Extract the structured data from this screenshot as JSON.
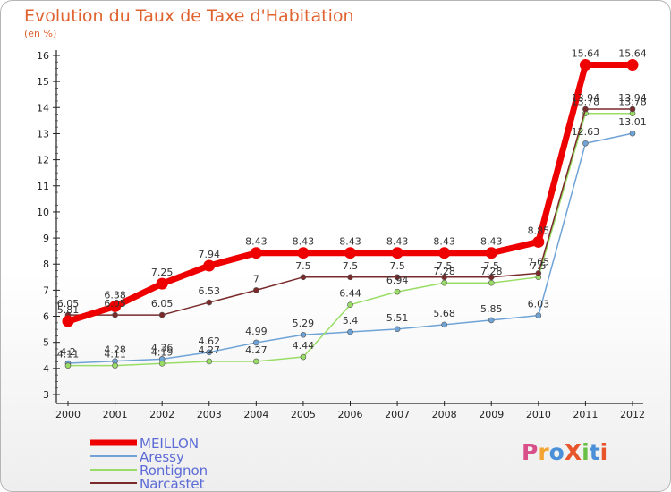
{
  "chart_data": {
    "type": "line",
    "title": "Evolution du Taux de Taxe d'Habitation",
    "subtitle": "(en %)",
    "x": [
      "2000",
      "2001",
      "2002",
      "2003",
      "2004",
      "2005",
      "2006",
      "2007",
      "2008",
      "2009",
      "2010",
      "2011",
      "2012"
    ],
    "ylim": [
      3,
      16
    ],
    "yticks": [
      3,
      4,
      5,
      6,
      7,
      8,
      9,
      10,
      11,
      12,
      13,
      14,
      15,
      16
    ],
    "grid": false,
    "legend_position": "bottom-left",
    "series": [
      {
        "name": "MEILLON",
        "color": "#ee0000",
        "width": 7,
        "values": [
          5.81,
          6.38,
          7.25,
          7.94,
          8.43,
          8.43,
          8.43,
          8.43,
          8.43,
          8.43,
          8.85,
          15.64,
          15.64
        ],
        "labels": [
          "5.81",
          "6.38",
          "7.25",
          "7.94",
          "8.43",
          "8.43",
          "8.43",
          "8.43",
          "8.43",
          "8.43",
          "8.85",
          "15.64",
          "15.64"
        ]
      },
      {
        "name": "Aressy",
        "color": "#6fa3d6",
        "width": 1.5,
        "values": [
          4.2,
          4.28,
          4.36,
          4.62,
          4.99,
          5.29,
          5.4,
          5.51,
          5.68,
          5.85,
          6.03,
          12.63,
          13.01
        ],
        "labels": [
          "4.2",
          "4.28",
          "4.36",
          "4.62",
          "4.99",
          "5.29",
          "5.4",
          "5.51",
          "5.68",
          "5.85",
          "6.03",
          "12.63",
          "13.01"
        ]
      },
      {
        "name": "Rontignon",
        "color": "#99dd66",
        "width": 1.5,
        "values": [
          4.11,
          4.11,
          4.19,
          4.27,
          4.27,
          4.44,
          6.44,
          6.94,
          7.28,
          7.28,
          7.5,
          13.78,
          13.78
        ],
        "labels": [
          "4.11",
          "4.11",
          "4.19",
          "4.27",
          "4.27",
          "4.44",
          "6.44",
          "6.94",
          "7.28",
          "7.28",
          "7.5",
          "13.78",
          "13.78"
        ]
      },
      {
        "name": "Narcastet",
        "color": "#7a2a2a",
        "width": 1.5,
        "values": [
          6.05,
          6.05,
          6.05,
          6.53,
          7,
          7.5,
          7.5,
          7.5,
          7.5,
          7.5,
          7.65,
          13.94,
          13.94
        ],
        "labels": [
          "6.05",
          "6.05",
          "6.05",
          "6.53",
          "7",
          "7.5",
          "7.5",
          "7.5",
          "7.5",
          "7.5",
          "7.65",
          "13.94",
          "13.94"
        ]
      }
    ]
  },
  "logo": {
    "text": "ProXiti",
    "colors": [
      "#d94f8a",
      "#f3a533",
      "#4a8fd8",
      "#e8552a",
      "#6abf45",
      "#4a8fd8",
      "#e8552a"
    ]
  }
}
